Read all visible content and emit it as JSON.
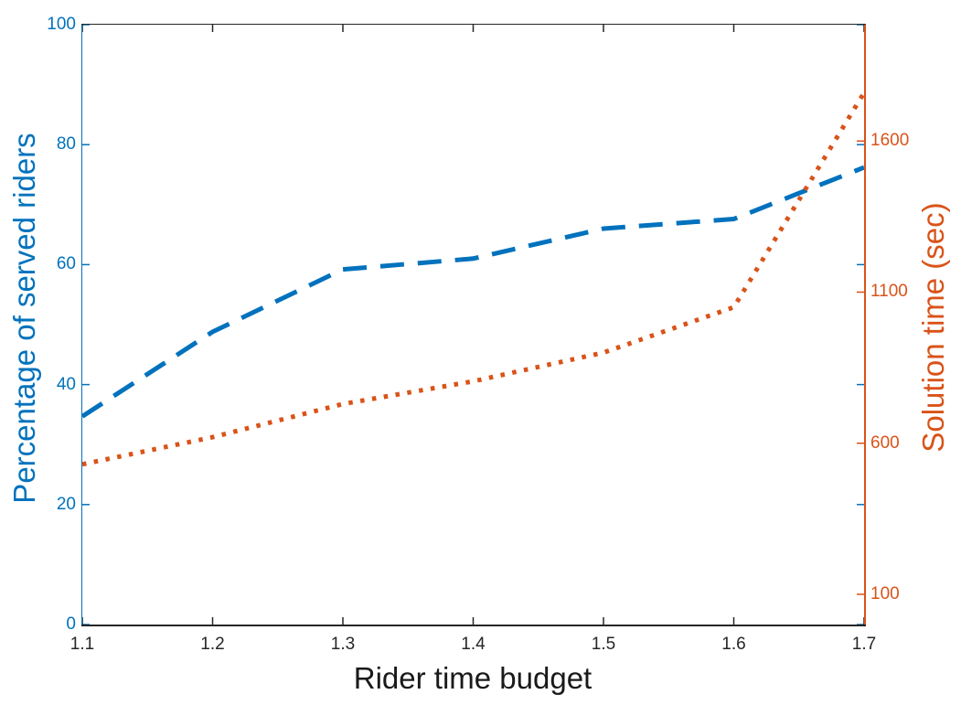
{
  "figure": {
    "xlabel": "Rider time budget",
    "ylabel_left": "Percentage of served riders",
    "ylabel_right": "Solution time (sec)",
    "colors": {
      "left_axis": "#0072BD",
      "right_axis": "#D95319",
      "x_axis": "#262626",
      "background": "#ffffff"
    }
  },
  "chart_data": {
    "type": "line",
    "title": "",
    "xlabel": "Rider time budget",
    "ylabel_left": "Percentage of served riders",
    "ylabel_right": "Solution time (sec)",
    "x": [
      1.1,
      1.2,
      1.3,
      1.4,
      1.5,
      1.6,
      1.7
    ],
    "series": [
      {
        "name": "Percentage of served riders",
        "axis": "left",
        "style": "dashed",
        "color": "#0072BD",
        "values": [
          34.7,
          48.8,
          59.2,
          61.0,
          66.0,
          67.6,
          76.2
        ]
      },
      {
        "name": "Solution time (sec)",
        "axis": "right",
        "style": "dotted",
        "color": "#D95319",
        "values": [
          530,
          620,
          730,
          805,
          900,
          1050,
          1760
        ]
      }
    ],
    "xlim": [
      1.1,
      1.7
    ],
    "x_ticks": [
      1.1,
      1.2,
      1.3,
      1.4,
      1.5,
      1.6,
      1.7
    ],
    "x_tick_labels": [
      "1.1",
      "1.2",
      "1.3",
      "1.4",
      "1.5",
      "1.6",
      "1.7"
    ],
    "left_ylim": [
      0,
      100
    ],
    "left_ticks": [
      0,
      20,
      40,
      60,
      80,
      100
    ],
    "left_tick_labels": [
      "0",
      "20",
      "40",
      "60",
      "80",
      "100"
    ],
    "right_ylim": [
      0,
      1985
    ],
    "right_ticks": [
      100,
      600,
      1100,
      1600
    ],
    "right_tick_labels": [
      "100",
      "600",
      "1100",
      "1600"
    ],
    "grid": false,
    "legend": "none",
    "box": true
  }
}
